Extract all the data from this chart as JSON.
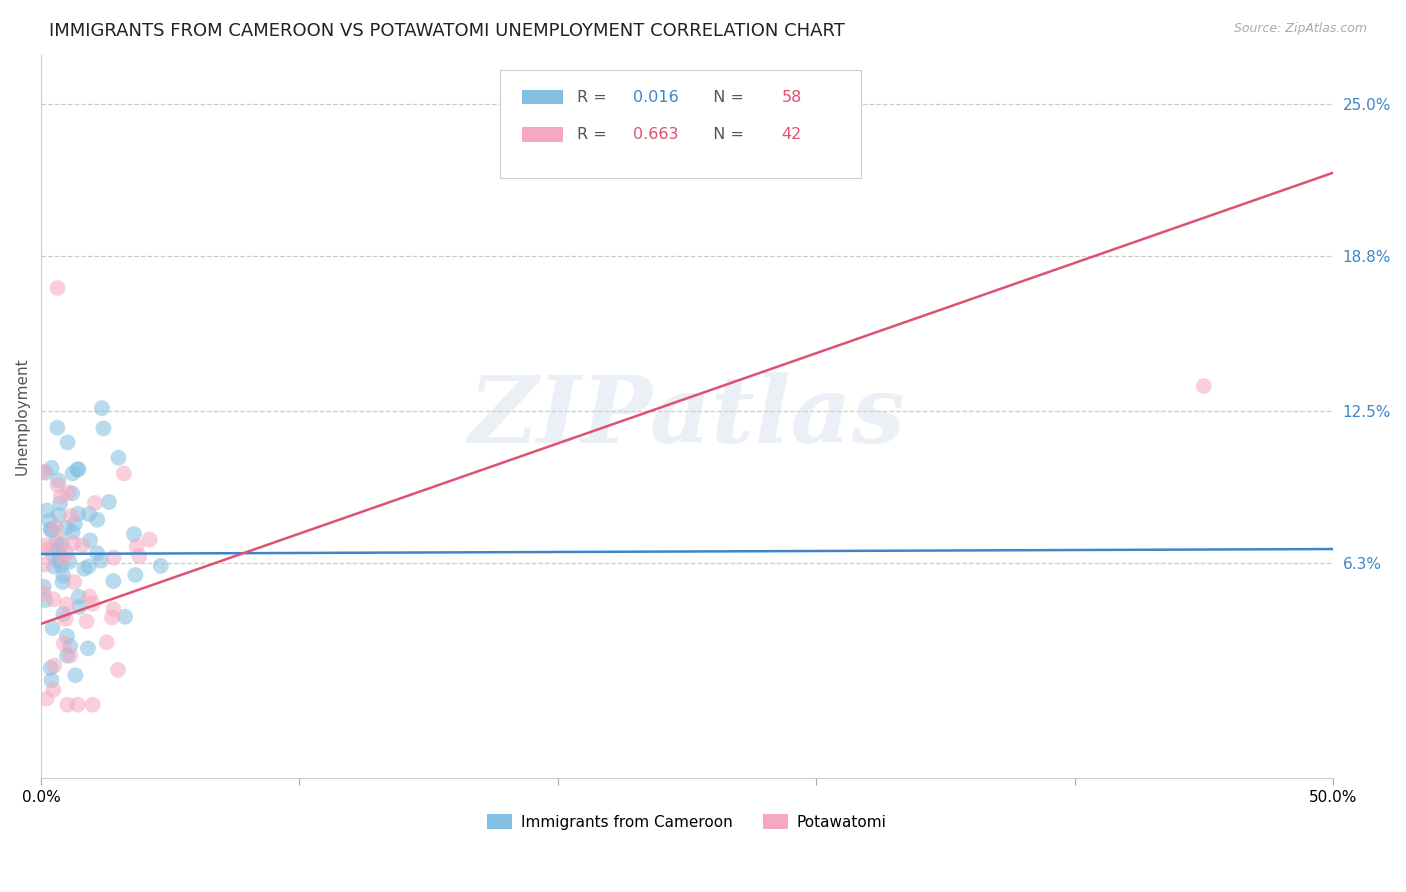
{
  "title": "IMMIGRANTS FROM CAMEROON VS POTAWATOMI UNEMPLOYMENT CORRELATION CHART",
  "source": "Source: ZipAtlas.com",
  "ylabel": "Unemployment",
  "yticks": [
    0.0,
    0.063,
    0.125,
    0.188,
    0.25
  ],
  "ytick_labels": [
    "",
    "6.3%",
    "12.5%",
    "18.8%",
    "25.0%"
  ],
  "xlim": [
    0.0,
    0.5
  ],
  "ylim": [
    -0.025,
    0.27
  ],
  "legend_label1": "Immigrants from Cameroon",
  "legend_label2": "Potawatomi",
  "watermark": "ZIPatlas",
  "blue_line_x": [
    0.0,
    0.5
  ],
  "blue_line_y": [
    0.0665,
    0.0685
  ],
  "pink_line_x": [
    0.0,
    0.5
  ],
  "pink_line_y": [
    0.038,
    0.222
  ],
  "blue_scatter_color": "#82bfe0",
  "pink_scatter_color": "#f5a8c0",
  "blue_line_color": "#3d85c8",
  "pink_line_color": "#e05070",
  "grid_color": "#cccccc",
  "grid_linestyle": "--",
  "background_color": "#ffffff",
  "title_fontsize": 13,
  "axis_label_fontsize": 11,
  "tick_fontsize": 11,
  "scatter_size": 130,
  "scatter_alpha": 0.55,
  "legend_r1": "R = 0.016",
  "legend_n1": "N = 58",
  "legend_r2": "R = 0.663",
  "legend_n2": "N = 42",
  "r1_color": "#3d85c8",
  "n1_color": "#e05070",
  "r2_color": "#e05070",
  "n2_color": "#e05070"
}
